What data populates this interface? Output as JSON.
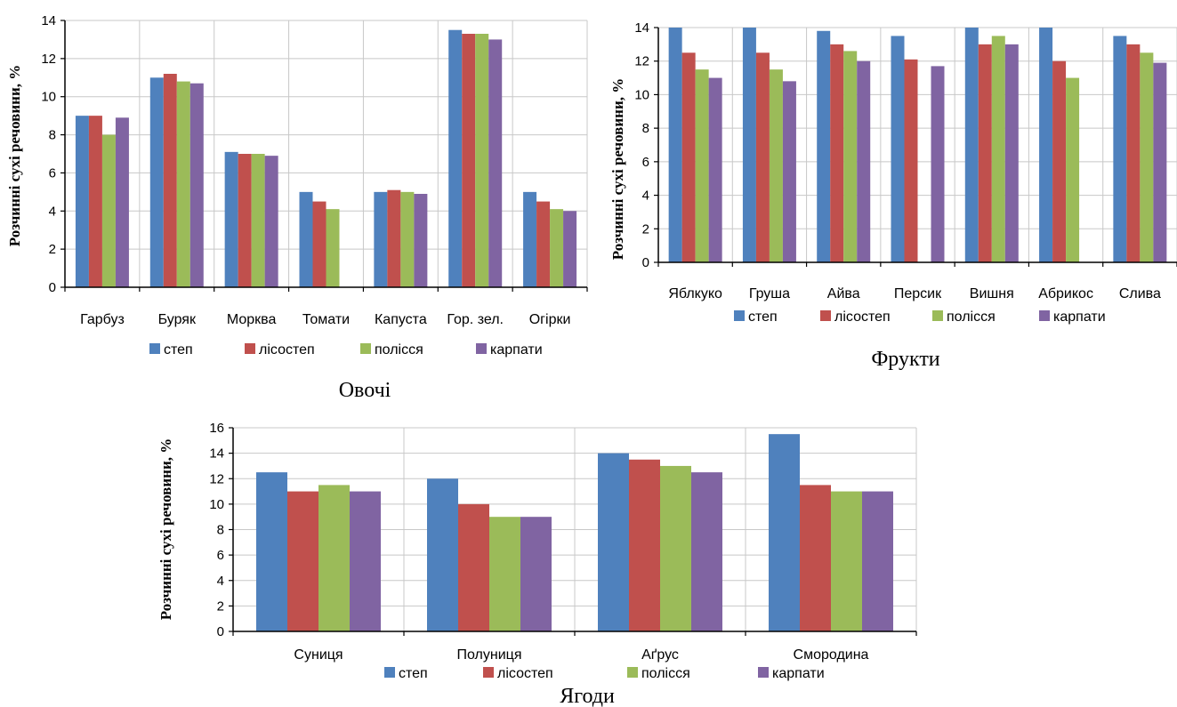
{
  "colors": {
    "степ": "#4f81bd",
    "лісостеп": "#c0504d",
    "полісся": "#9bbb59",
    "карпати": "#8064a2"
  },
  "chart_data": [
    {
      "type": "bar",
      "title": "Овочі",
      "ylabel": "Розчинні сухі речовини, %",
      "ylim": [
        0,
        14
      ],
      "yticks": [
        0,
        2,
        4,
        6,
        8,
        10,
        12,
        14
      ],
      "grid": true,
      "legend": "bottom",
      "categories": [
        "Гарбуз",
        "Буряк",
        "Морква",
        "Томати",
        "Капуста",
        "Гор. зел.",
        "Огірки"
      ],
      "series": [
        {
          "name": "степ",
          "values": [
            9.0,
            11.0,
            7.1,
            5.0,
            5.0,
            13.5,
            5.0
          ]
        },
        {
          "name": "лісостеп",
          "values": [
            9.0,
            11.2,
            7.0,
            4.5,
            5.1,
            13.3,
            4.5
          ]
        },
        {
          "name": "полісся",
          "values": [
            8.0,
            10.8,
            7.0,
            4.1,
            5.0,
            13.3,
            4.1
          ]
        },
        {
          "name": "карпати",
          "values": [
            8.9,
            10.7,
            6.9,
            null,
            4.9,
            13.0,
            4.0
          ]
        }
      ]
    },
    {
      "type": "bar",
      "title": "Фрукти",
      "ylabel": "Розчинні сухі речовини, %",
      "ylim": [
        0,
        14
      ],
      "yticks": [
        0,
        2,
        4,
        6,
        8,
        10,
        12,
        14
      ],
      "grid": true,
      "legend": "bottom",
      "categories": [
        "Яблкуко",
        "Груша",
        "Айва",
        "Персик",
        "Вишня",
        "Абрикос",
        "Слива"
      ],
      "series": [
        {
          "name": "степ",
          "values": [
            14.0,
            14.0,
            13.8,
            13.5,
            14.0,
            14.0,
            13.5
          ]
        },
        {
          "name": "лісостеп",
          "values": [
            12.5,
            12.5,
            13.0,
            12.1,
            13.0,
            12.0,
            13.0
          ]
        },
        {
          "name": "полісся",
          "values": [
            11.5,
            11.5,
            12.6,
            null,
            13.5,
            11.0,
            12.5
          ]
        },
        {
          "name": "карпати",
          "values": [
            11.0,
            10.8,
            12.0,
            11.7,
            13.0,
            null,
            11.9
          ]
        }
      ]
    },
    {
      "type": "bar",
      "title": "Ягоди",
      "ylabel": "Розчинні сухі речовини, %",
      "ylim": [
        0,
        16
      ],
      "yticks": [
        0,
        2,
        4,
        6,
        8,
        10,
        12,
        14,
        16
      ],
      "grid": true,
      "legend": "bottom",
      "categories": [
        "Суниця",
        "Полуниця",
        "Аґрус",
        "Смородина"
      ],
      "series": [
        {
          "name": "степ",
          "values": [
            12.5,
            12.0,
            14.0,
            15.5
          ]
        },
        {
          "name": "лісостеп",
          "values": [
            11.0,
            10.0,
            13.5,
            11.5
          ]
        },
        {
          "name": "полісся",
          "values": [
            11.5,
            9.0,
            13.0,
            11.0
          ]
        },
        {
          "name": "карпати",
          "values": [
            11.0,
            9.0,
            12.5,
            11.0
          ]
        }
      ]
    }
  ]
}
